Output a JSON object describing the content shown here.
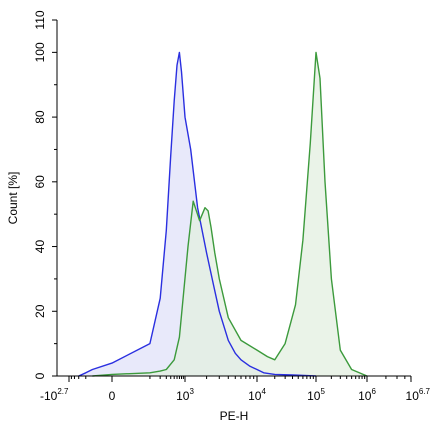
{
  "chart_data": {
    "type": "area",
    "title": "",
    "xlabel": "PE-H",
    "ylabel": "Count [%]",
    "xscale": "biexponential",
    "xlim": [
      -501,
      5011872
    ],
    "ylim": [
      0,
      110
    ],
    "yticks": [
      0,
      20,
      40,
      60,
      80,
      100,
      110
    ],
    "xticks": [
      {
        "base": "-10",
        "exp": "2.7",
        "value": -501
      },
      {
        "base": "0",
        "exp": "",
        "value": 0
      },
      {
        "base": "10",
        "exp": "3",
        "value": 1000
      },
      {
        "base": "10",
        "exp": "4",
        "value": 10000
      },
      {
        "base": "10",
        "exp": "5",
        "value": 100000
      },
      {
        "base": "10",
        "exp": "6",
        "value": 1000000
      },
      {
        "base": "10",
        "exp": "6.7",
        "value": 5011872
      }
    ],
    "grid": false,
    "legend": "none",
    "series": [
      {
        "color": "#2a2fe0",
        "fill": "#e0e2f8",
        "x": [
          -200,
          -100,
          -50,
          0,
          100,
          200,
          300,
          400,
          500,
          600,
          700,
          800,
          1000,
          1200,
          1500,
          2000,
          2500,
          3000,
          4000,
          5000,
          6000,
          8000,
          10000,
          13000,
          20000,
          40000,
          100000
        ],
        "y": [
          0,
          1,
          2,
          4,
          10,
          24,
          45,
          68,
          85,
          96,
          100,
          94,
          80,
          70,
          52,
          38,
          28,
          20,
          11,
          7,
          5,
          3,
          2,
          1,
          0.5,
          0.3,
          0
        ]
      },
      {
        "color": "#3c9a3c",
        "fill": "#e3efe0",
        "x": [
          -50,
          0,
          100,
          200,
          300,
          500,
          700,
          900,
          1100,
          1300,
          1600,
          1900,
          2100,
          2300,
          2600,
          3000,
          4000,
          6000,
          10000,
          15000,
          20000,
          30000,
          45000,
          60000,
          80000,
          100000,
          120000,
          150000,
          200000,
          300000,
          500000,
          1000000
        ],
        "y": [
          0,
          0.5,
          1,
          1.5,
          2,
          5,
          12,
          25,
          40,
          54,
          48,
          52,
          51,
          46,
          38,
          30,
          18,
          11,
          8,
          6,
          5,
          10,
          22,
          42,
          72,
          100,
          92,
          60,
          30,
          8,
          2,
          0
        ]
      }
    ]
  }
}
